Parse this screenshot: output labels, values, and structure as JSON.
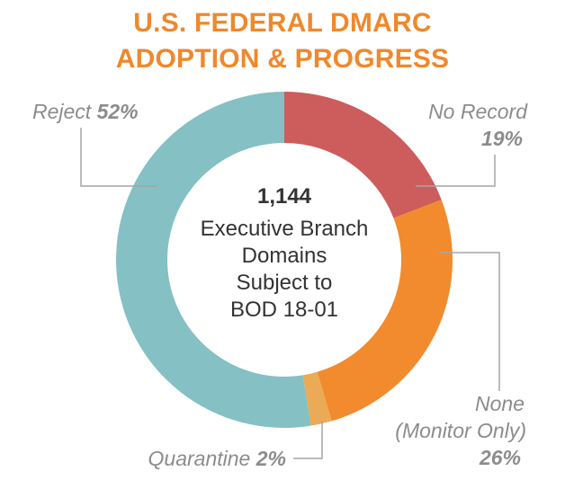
{
  "chart_data": {
    "type": "pie",
    "title": "U.S. FEDERAL DMARC ADOPTION & PROGRESS",
    "title_lines": [
      "U.S. FEDERAL DMARC",
      "ADOPTION & PROGRESS"
    ],
    "center_text": {
      "number": "1,144",
      "lines": [
        "Executive Branch",
        "Domains",
        "Subject to",
        "BOD 18-01"
      ]
    },
    "slices": [
      {
        "key": "no_record",
        "percent": 19,
        "color": "#cd5c5c",
        "label_lines": [
          "No Record"
        ],
        "value_text": "19%"
      },
      {
        "key": "none",
        "percent": 26,
        "color": "#f28b2d",
        "label_lines": [
          "None",
          "(Monitor Only)"
        ],
        "value_text": "26%"
      },
      {
        "key": "quarantine",
        "percent": 2,
        "color": "#ebaa55",
        "label_lines": [
          "Quarantine"
        ],
        "value_text": "2%"
      },
      {
        "key": "reject",
        "percent": 52,
        "color": "#84c0c4",
        "label_lines": [
          "Reject"
        ],
        "value_text": "52%"
      }
    ],
    "colors": {
      "title": "#f0882c",
      "label": "#8c8c8c",
      "center_text": "#333333",
      "leader": "#a6a6a6"
    }
  }
}
